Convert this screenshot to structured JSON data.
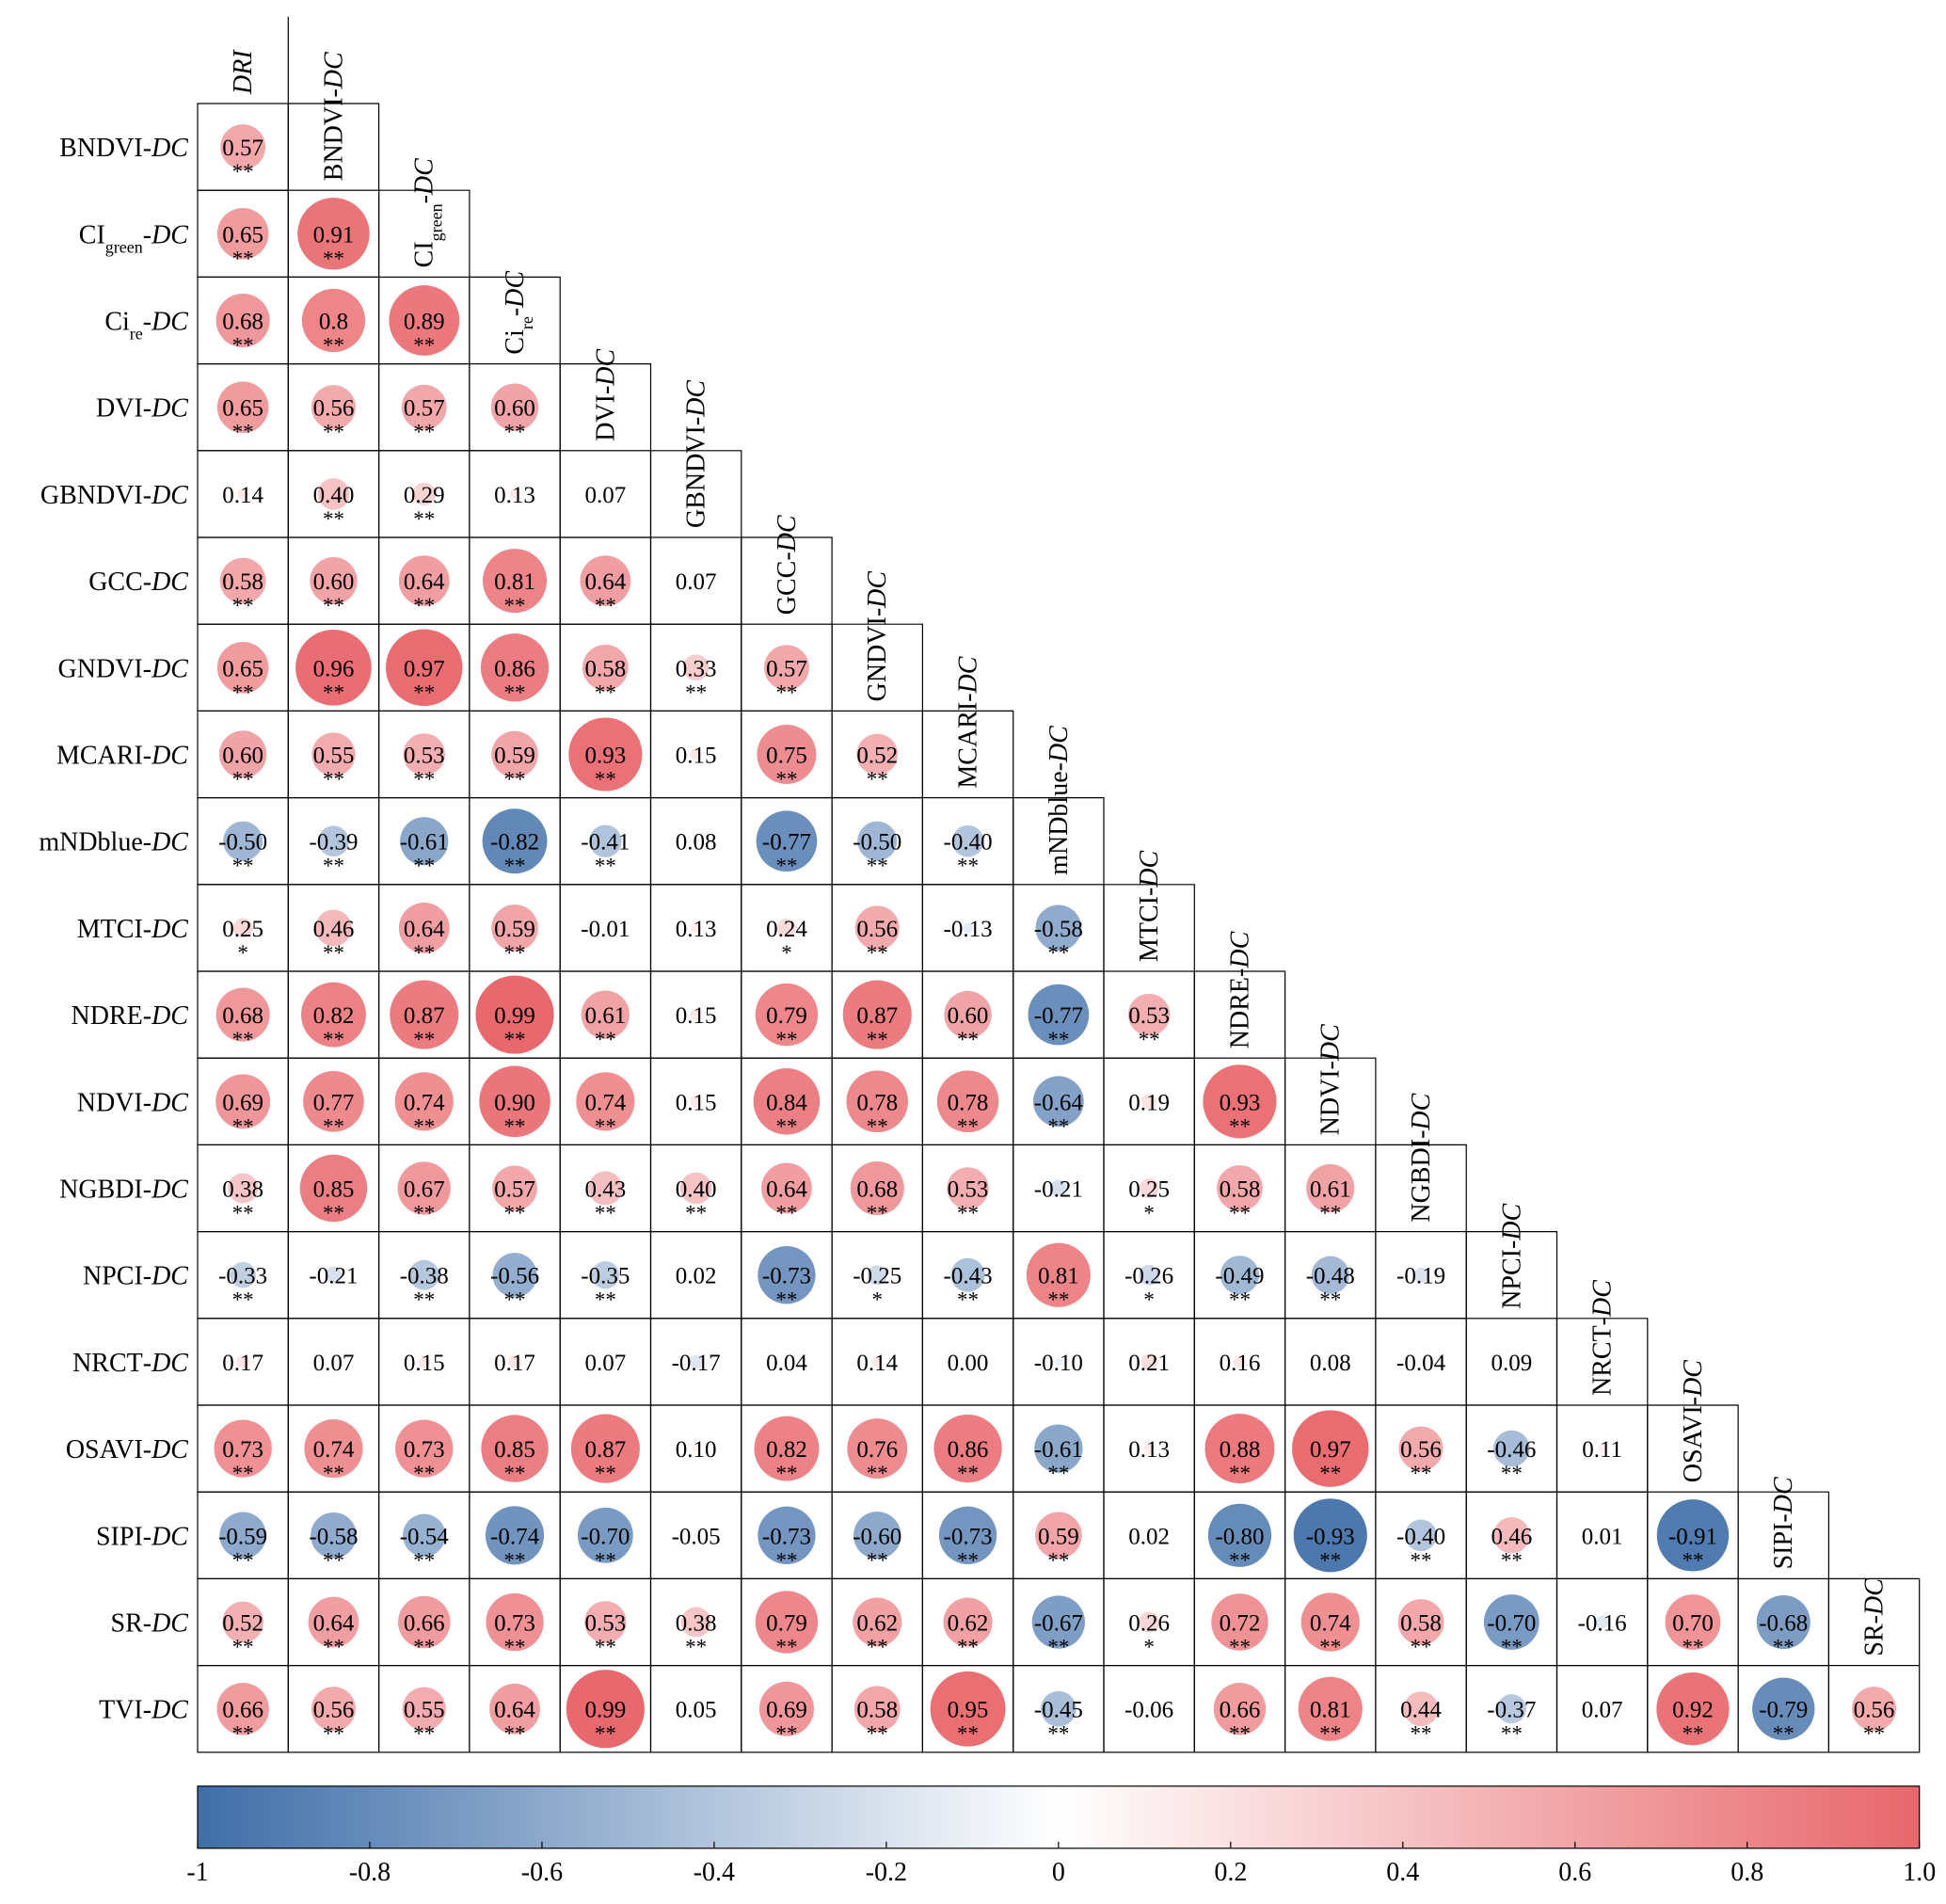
{
  "chart_data": {
    "type": "heatmap",
    "row_labels": [
      {
        "name": "BNDVI",
        "suffix": "-DC"
      },
      {
        "name": "CI",
        "sub": "green",
        "suffix": "-DC"
      },
      {
        "name": "Ci",
        "sub": "re",
        "suffix": "-DC"
      },
      {
        "name": "DVI",
        "suffix": "-DC"
      },
      {
        "name": "GBNDVI",
        "suffix": "-DC"
      },
      {
        "name": "GCC",
        "suffix": "-DC"
      },
      {
        "name": "GNDVI",
        "suffix": "-DC"
      },
      {
        "name": "MCARI",
        "suffix": "-DC"
      },
      {
        "name": "mNDblue",
        "suffix": "-DC"
      },
      {
        "name": "MTCI",
        "suffix": "-DC"
      },
      {
        "name": "NDRE",
        "suffix": "-DC"
      },
      {
        "name": "NDVI",
        "suffix": "-DC"
      },
      {
        "name": "NGBDI",
        "suffix": "-DC"
      },
      {
        "name": "NPCI",
        "suffix": "-DC"
      },
      {
        "name": "NRCT",
        "suffix": "-DC"
      },
      {
        "name": "OSAVI",
        "suffix": "-DC"
      },
      {
        "name": "SIPI",
        "suffix": "-DC"
      },
      {
        "name": "SR",
        "suffix": "-DC"
      },
      {
        "name": "TVI",
        "suffix": "-DC"
      }
    ],
    "column_labels": [
      {
        "name": "",
        "suffix": "DRI"
      },
      {
        "name": "BNDVI",
        "suffix": "-DC"
      },
      {
        "name": "CI",
        "sub": "green",
        "suffix": "-DC"
      },
      {
        "name": "Ci",
        "sub": "re",
        "suffix": "-DC"
      },
      {
        "name": "DVI",
        "suffix": "-DC"
      },
      {
        "name": "GBNDVI",
        "suffix": "-DC"
      },
      {
        "name": "GCC",
        "suffix": "-DC"
      },
      {
        "name": "GNDVI",
        "suffix": "-DC"
      },
      {
        "name": "MCARI",
        "suffix": "-DC"
      },
      {
        "name": "mNDblue",
        "suffix": "-DC"
      },
      {
        "name": "MTCI",
        "suffix": "-DC"
      },
      {
        "name": "NDRE",
        "suffix": "-DC"
      },
      {
        "name": "NDVI",
        "suffix": "-DC"
      },
      {
        "name": "NGBDI",
        "suffix": "-DC"
      },
      {
        "name": "NPCI",
        "suffix": "-DC"
      },
      {
        "name": "NRCT",
        "suffix": "-DC"
      },
      {
        "name": "OSAVI",
        "suffix": "-DC"
      },
      {
        "name": "SIPI",
        "suffix": "-DC"
      },
      {
        "name": "SR",
        "suffix": "-DC"
      }
    ],
    "values": [
      [
        "0.57"
      ],
      [
        "0.65",
        "0.91"
      ],
      [
        "0.68",
        "0.8",
        "0.89"
      ],
      [
        "0.65",
        "0.56",
        "0.57",
        "0.60"
      ],
      [
        "0.14",
        "0.40",
        "0.29",
        "0.13",
        "0.07"
      ],
      [
        "0.58",
        "0.60",
        "0.64",
        "0.81",
        "0.64",
        "0.07"
      ],
      [
        "0.65",
        "0.96",
        "0.97",
        "0.86",
        "0.58",
        "0.33",
        "0.57"
      ],
      [
        "0.60",
        "0.55",
        "0.53",
        "0.59",
        "0.93",
        "0.15",
        "0.75",
        "0.52"
      ],
      [
        "-0.50",
        "-0.39",
        "-0.61",
        "-0.82",
        "-0.41",
        "0.08",
        "-0.77",
        "-0.50",
        "-0.40"
      ],
      [
        "0.25",
        "0.46",
        "0.64",
        "0.59",
        "-0.01",
        "0.13",
        "0.24",
        "0.56",
        "-0.13",
        "-0.58"
      ],
      [
        "0.68",
        "0.82",
        "0.87",
        "0.99",
        "0.61",
        "0.15",
        "0.79",
        "0.87",
        "0.60",
        "-0.77",
        "0.53"
      ],
      [
        "0.69",
        "0.77",
        "0.74",
        "0.90",
        "0.74",
        "0.15",
        "0.84",
        "0.78",
        "0.78",
        "-0.64",
        "0.19",
        "0.93"
      ],
      [
        "0.38",
        "0.85",
        "0.67",
        "0.57",
        "0.43",
        "0.40",
        "0.64",
        "0.68",
        "0.53",
        "-0.21",
        "0.25",
        "0.58",
        "0.61"
      ],
      [
        "-0.33",
        "-0.21",
        "-0.38",
        "-0.56",
        "-0.35",
        "0.02",
        "-0.73",
        "-0.25",
        "-0.43",
        "0.81",
        "-0.26",
        "-0.49",
        "-0.48",
        "-0.19"
      ],
      [
        "0.17",
        "0.07",
        "0.15",
        "0.17",
        "0.07",
        "-0.17",
        "0.04",
        "0.14",
        "0.00",
        "-0.10",
        "0.21",
        "0.16",
        "0.08",
        "-0.04",
        "0.09"
      ],
      [
        "0.73",
        "0.74",
        "0.73",
        "0.85",
        "0.87",
        "0.10",
        "0.82",
        "0.76",
        "0.86",
        "-0.61",
        "0.13",
        "0.88",
        "0.97",
        "0.56",
        "-0.46",
        "0.11"
      ],
      [
        "-0.59",
        "-0.58",
        "-0.54",
        "-0.74",
        "-0.70",
        "-0.05",
        "-0.73",
        "-0.60",
        "-0.73",
        "0.59",
        "0.02",
        "-0.80",
        "-0.93",
        "-0.40",
        "0.46",
        "0.01",
        "-0.91"
      ],
      [
        "0.52",
        "0.64",
        "0.66",
        "0.73",
        "0.53",
        "0.38",
        "0.79",
        "0.62",
        "0.62",
        "-0.67",
        "0.26",
        "0.72",
        "0.74",
        "0.58",
        "-0.70",
        "-0.16",
        "0.70",
        "-0.68"
      ],
      [
        "0.66",
        "0.56",
        "0.55",
        "0.64",
        "0.99",
        "0.05",
        "0.69",
        "0.58",
        "0.95",
        "-0.45",
        "-0.06",
        "0.66",
        "0.81",
        "0.44",
        "-0.37",
        "0.07",
        "0.92",
        "-0.79",
        "0.56"
      ]
    ],
    "significance": [
      [
        "**"
      ],
      [
        "**",
        "**"
      ],
      [
        "**",
        "**",
        "**"
      ],
      [
        "**",
        "**",
        "**",
        "**"
      ],
      [
        "",
        "**",
        "**",
        "",
        ""
      ],
      [
        "**",
        "**",
        "**",
        "**",
        "**",
        ""
      ],
      [
        "**",
        "**",
        "**",
        "**",
        "**",
        "**",
        "**"
      ],
      [
        "**",
        "**",
        "**",
        "**",
        "**",
        "",
        "**",
        "**"
      ],
      [
        "**",
        "**",
        "**",
        "**",
        "**",
        "",
        "**",
        "**",
        "**"
      ],
      [
        "*",
        "**",
        "**",
        "**",
        "",
        "",
        "*",
        "**",
        "",
        "**"
      ],
      [
        "**",
        "**",
        "**",
        "**",
        "**",
        "",
        "**",
        "**",
        "**",
        "**",
        "**"
      ],
      [
        "**",
        "**",
        "**",
        "**",
        "**",
        "",
        "**",
        "**",
        "**",
        "**",
        "",
        "**"
      ],
      [
        "**",
        "**",
        "**",
        "**",
        "**",
        "**",
        "**",
        "**",
        "**",
        "",
        "*",
        "**",
        "**"
      ],
      [
        "**",
        "",
        "**",
        "**",
        "**",
        "",
        "**",
        "*",
        "**",
        "**",
        "*",
        "**",
        "**",
        ""
      ],
      [
        "",
        "",
        "",
        "",
        "",
        "",
        "",
        "",
        "",
        "",
        "",
        "",
        "",
        "",
        ""
      ],
      [
        "**",
        "**",
        "**",
        "**",
        "**",
        "",
        "**",
        "**",
        "**",
        "**",
        "",
        "**",
        "**",
        "**",
        "**",
        ""
      ],
      [
        "**",
        "**",
        "**",
        "**",
        "**",
        "",
        "**",
        "**",
        "**",
        "**",
        "",
        "**",
        "**",
        "**",
        "**",
        "",
        "**"
      ],
      [
        "**",
        "**",
        "**",
        "**",
        "**",
        "**",
        "**",
        "**",
        "**",
        "**",
        "*",
        "**",
        "**",
        "**",
        "**",
        "",
        "**",
        "**"
      ],
      [
        "**",
        "**",
        "**",
        "**",
        "**",
        "",
        "**",
        "**",
        "**",
        "**",
        "",
        "**",
        "**",
        "**",
        "**",
        "",
        "**",
        "**",
        "**"
      ]
    ],
    "colorbar": {
      "range": [
        -1,
        1
      ],
      "ticks": [
        "-1",
        "-0.8",
        "-0.6",
        "-0.4",
        "-0.2",
        "0",
        "0.2",
        "0.4",
        "0.6",
        "0.8",
        "1.0"
      ]
    },
    "colors": {
      "negative": "#3f6ea8",
      "neutral": "#ffffff",
      "positive": "#e8676c",
      "grid": "#000000",
      "text": "#000000"
    },
    "grid": true,
    "legend": "bottom"
  }
}
